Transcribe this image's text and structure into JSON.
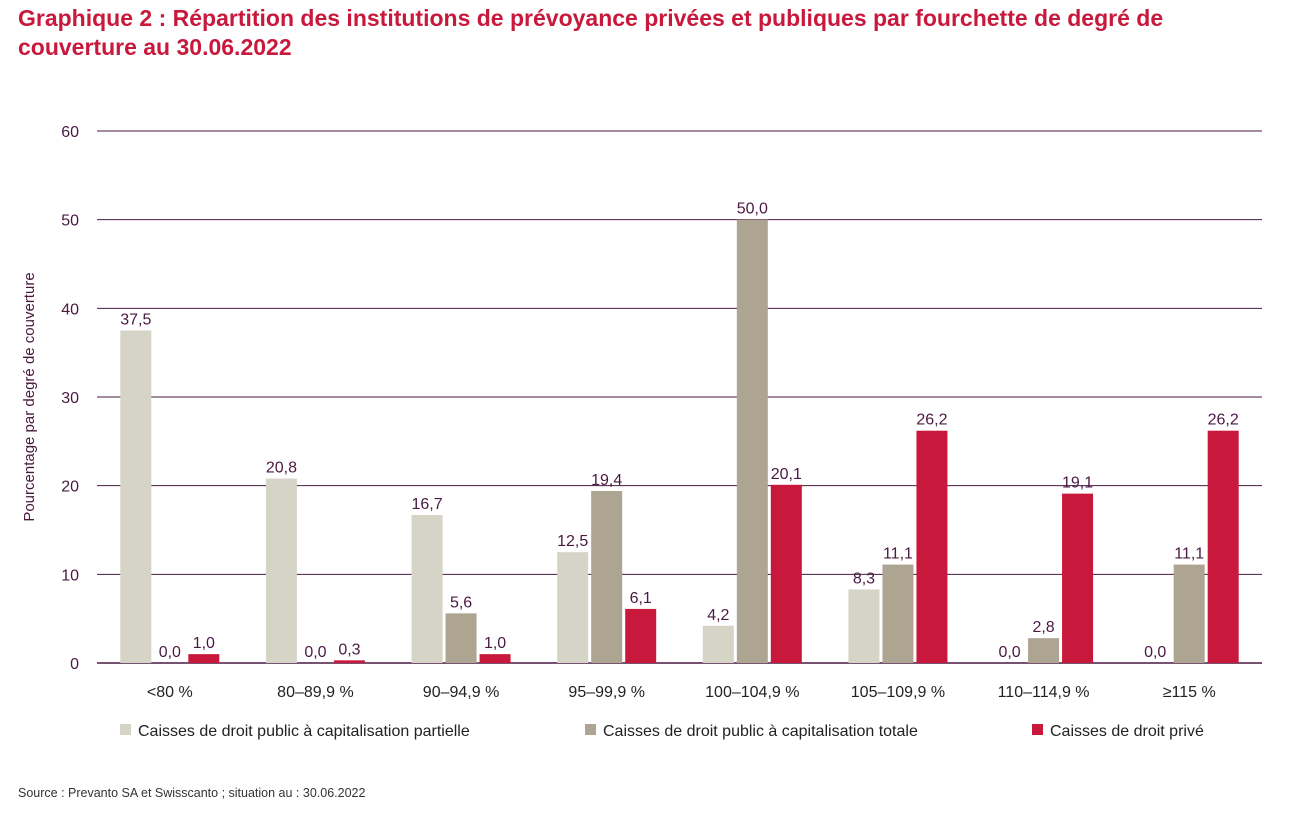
{
  "title": "Graphique 2 : Répartition des institutions de prévoyance privées et publiques par fourchette de degré de couverture au 30.06.2022",
  "source": "Source : Prevanto SA et Swisscanto ; situation au : 30.06.2022",
  "chart_data": {
    "type": "bar",
    "ylabel": "Pourcentage par degré de couverture",
    "ylim": [
      0,
      60
    ],
    "yticks": [
      0,
      10,
      20,
      30,
      40,
      50,
      60
    ],
    "grid": true,
    "legend_position": "bottom",
    "categories": [
      "<80 %",
      "80–89,9 %",
      "90–94,9 %",
      "95–99,9 %",
      "100–104,9 %",
      "105–109,9 %",
      "110–114,9 %",
      "≥115 %"
    ],
    "series": [
      {
        "name": "Caisses de droit public à capitalisation partielle",
        "color": "#d6d4c6",
        "values": [
          37.5,
          20.8,
          16.7,
          12.5,
          4.2,
          8.3,
          0.0,
          0.0
        ],
        "labels": [
          "37,5",
          "20,8",
          "16,7",
          "12,5",
          "4,2",
          "8,3",
          "0,0",
          "0,0"
        ]
      },
      {
        "name": "Caisses de droit public à capitalisation totale",
        "color": "#ada491",
        "values": [
          0.0,
          0.0,
          5.6,
          19.4,
          50.0,
          11.1,
          2.8,
          11.1
        ],
        "labels": [
          "0,0",
          "0,0",
          "5,6",
          "19,4",
          "50,0",
          "11,1",
          "2,8",
          "11,1"
        ]
      },
      {
        "name": "Caisses de droit privé",
        "color": "#c8193c",
        "values": [
          1.0,
          0.3,
          1.0,
          6.1,
          20.1,
          26.2,
          19.1,
          26.2
        ],
        "labels": [
          "1,0",
          "0,3",
          "1,0",
          "6,1",
          "20,1",
          "26,2",
          "19,1",
          "26,2"
        ]
      }
    ]
  }
}
